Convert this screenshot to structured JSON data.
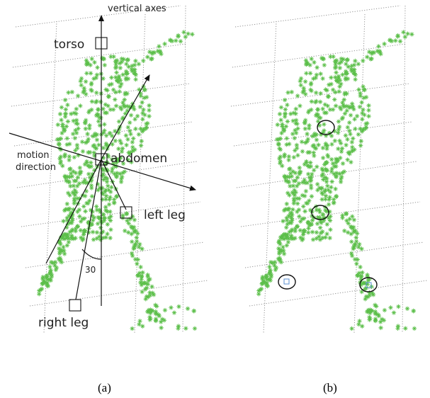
{
  "colors": {
    "points": "#5cbf4a",
    "lines": "#111111",
    "grid": "#888888"
  },
  "panel_a": {
    "label_vertical_axes": "vertical axes",
    "label_torso": "torso",
    "label_abdomen": "abdomen",
    "label_motion": "motion",
    "label_direction": "direction",
    "label_left_leg": "left leg",
    "label_right_leg": "right leg",
    "label_angle": "30",
    "caption": "(a)"
  },
  "panel_b": {
    "caption": "(b)"
  }
}
